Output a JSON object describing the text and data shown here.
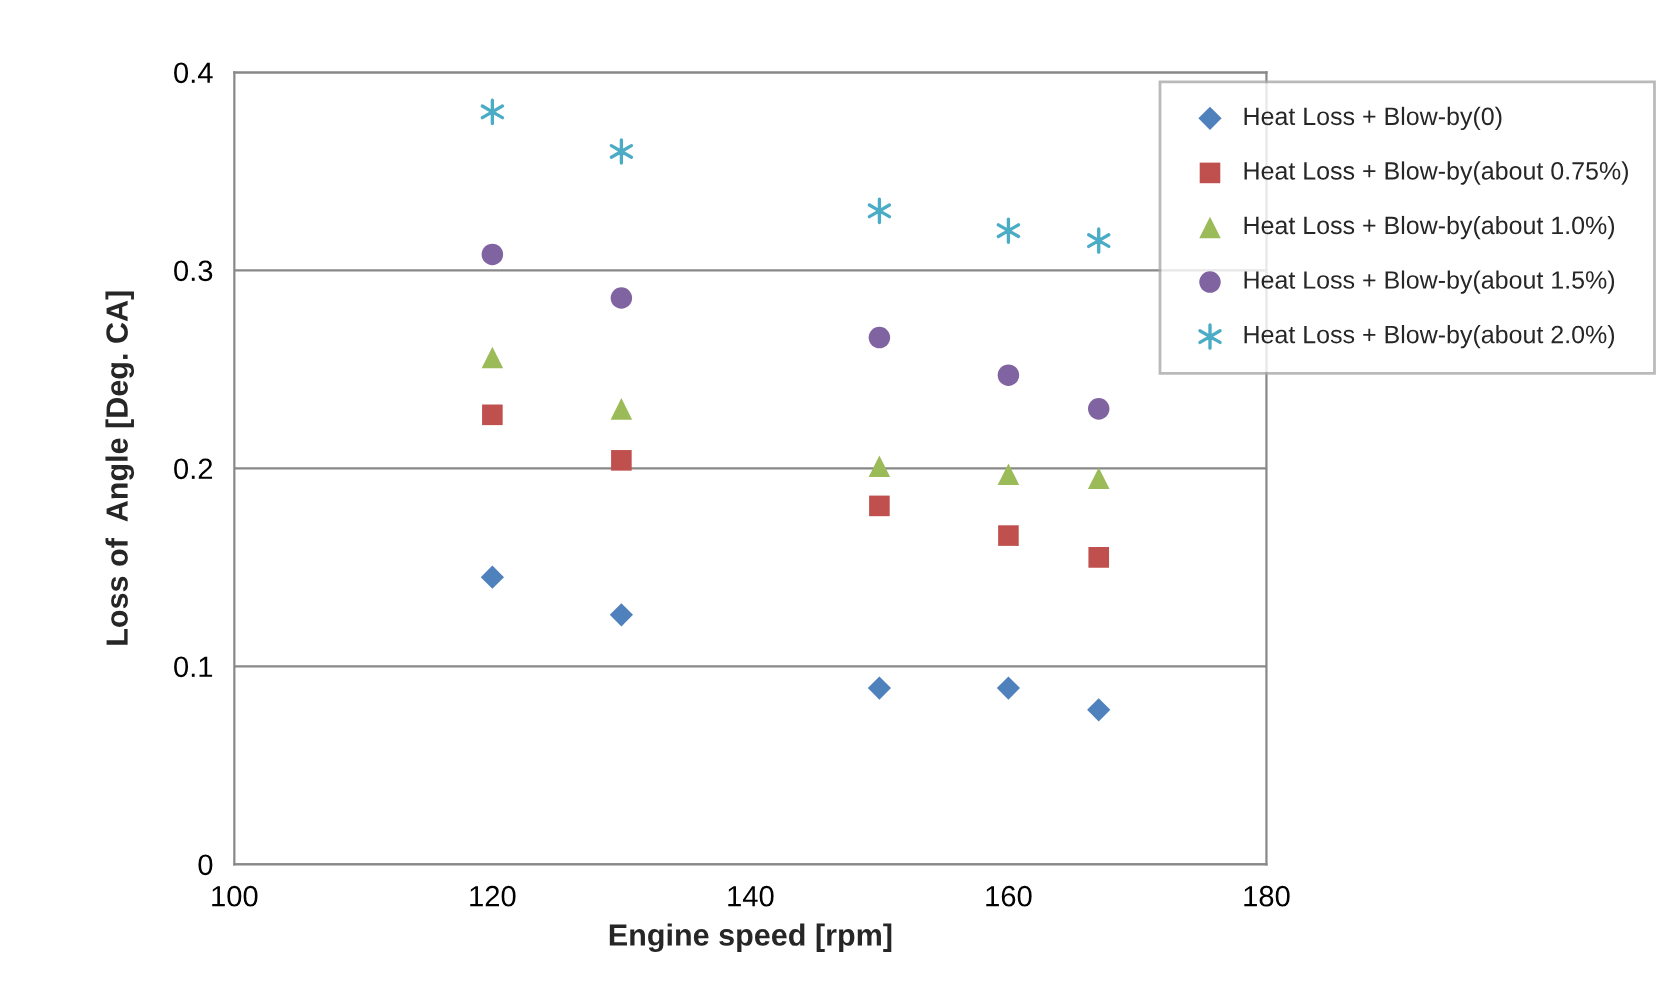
{
  "chart_data": {
    "type": "scatter",
    "xlabel": "Engine speed [rpm]",
    "ylabel": "Loss of  Angle [Deg. CA]",
    "x": [
      120,
      130,
      150,
      160,
      167
    ],
    "series": [
      {
        "name": "Heat Loss + Blow-by(0)",
        "color": "#4f81bd",
        "marker": "diamond",
        "values": [
          0.145,
          0.126,
          0.089,
          0.089,
          0.078
        ]
      },
      {
        "name": "Heat Loss + Blow-by(about 0.75%)",
        "color": "#c0504d",
        "marker": "square",
        "values": [
          0.227,
          0.204,
          0.181,
          0.166,
          0.155
        ]
      },
      {
        "name": "Heat Loss + Blow-by(about 1.0%)",
        "color": "#9bbb59",
        "marker": "triangle",
        "values": [
          0.256,
          0.23,
          0.201,
          0.197,
          0.195
        ]
      },
      {
        "name": "Heat Loss + Blow-by(about 1.5%)",
        "color": "#8064a2",
        "marker": "circle",
        "values": [
          0.308,
          0.286,
          0.266,
          0.247,
          0.23
        ]
      },
      {
        "name": "Heat Loss + Blow-by(about 2.0%)",
        "color": "#4bacc6",
        "marker": "cross",
        "values": [
          0.38,
          0.36,
          0.33,
          0.32,
          0.315
        ]
      }
    ],
    "xlim": [
      100,
      180
    ],
    "xticks": [
      100,
      120,
      140,
      160,
      180
    ],
    "ylim": [
      0,
      0.4
    ],
    "yticks": [
      0,
      0.1,
      0.2,
      0.3,
      0.4
    ],
    "grid": "y",
    "legend": "top right"
  }
}
